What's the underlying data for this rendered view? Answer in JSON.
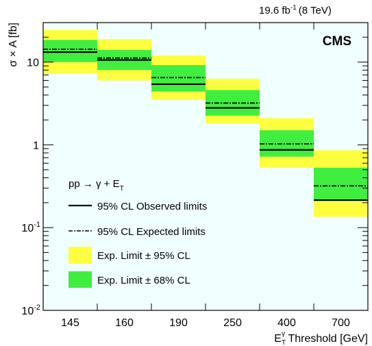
{
  "header": {
    "lumi": "19.6 fb",
    "lumi_exp": "-1",
    "energy": "(8 TeV)"
  },
  "experiment_label": "CMS",
  "colors": {
    "band95": "#ffff40",
    "band68": "#40ee40",
    "background": "#f0ffff",
    "observed": "#000000",
    "expected": "#000000"
  },
  "chart_data": {
    "type": "bar",
    "yscale": "log",
    "ylim": [
      0.01,
      30
    ],
    "categories": [
      "145",
      "160",
      "190",
      "250",
      "400",
      "700"
    ],
    "ylabel": "σ × A [fb]",
    "xlabel": {
      "main": "E",
      "sub": "T",
      "sup": "γ",
      "suffix": " Threshold [GeV]"
    },
    "y_ticks": [
      {
        "value": 0.01,
        "base": "10",
        "exp": "-2"
      },
      {
        "value": 0.1,
        "base": "10",
        "exp": "-1"
      },
      {
        "value": 1,
        "base": "1",
        "exp": ""
      },
      {
        "value": 10,
        "base": "10",
        "exp": ""
      }
    ],
    "series": [
      {
        "name": "95% CL Observed limits",
        "values": [
          13.2,
          10.6,
          5.4,
          2.8,
          0.87,
          0.215
        ]
      },
      {
        "name": "95% CL Expected limits",
        "values": [
          14.3,
          11.2,
          6.5,
          3.2,
          1.03,
          0.32
        ]
      }
    ],
    "band68": [
      [
        10.0,
        18.5
      ],
      [
        8.0,
        14.0
      ],
      [
        4.4,
        9.2
      ],
      [
        2.25,
        4.6
      ],
      [
        0.72,
        1.5
      ],
      [
        0.21,
        0.53
      ]
    ],
    "band95": [
      [
        7.2,
        24.5
      ],
      [
        6.0,
        19.0
      ],
      [
        3.5,
        12.0
      ],
      [
        1.8,
        6.3
      ],
      [
        0.53,
        2.1
      ],
      [
        0.135,
        0.86
      ]
    ],
    "legend": {
      "process": {
        "base": "pp → γ + E",
        "sub": "T"
      },
      "observed_label": "95% CL Observed limits",
      "expected_label": "95% CL Expected limits",
      "band95_label": "Exp. Limit ± 95% CL",
      "band68_label": "Exp. Limit ± 68% CL"
    }
  }
}
